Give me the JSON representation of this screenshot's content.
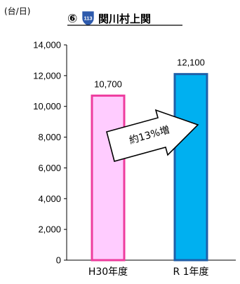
{
  "chart_data": {
    "type": "bar",
    "title_number": "⑥",
    "route_badge": "113",
    "title": "関川村上関",
    "unit_label": "(台/日)",
    "categories": [
      "H30年度",
      "R 1年度"
    ],
    "values": [
      10700,
      12100
    ],
    "value_labels": [
      "10,700",
      "12,100"
    ],
    "ylim": [
      0,
      14000
    ],
    "ytick_step": 2000,
    "ytick_labels": [
      "0",
      "2,000",
      "4,000",
      "6,000",
      "8,000",
      "10,000",
      "12,000",
      "14,000"
    ],
    "grid": false,
    "annotation": "約13%増",
    "bar_fill_colors": [
      "#FFCCFF",
      "#00B0F0"
    ],
    "bar_edge_colors": [
      "#EE3C9E",
      "#1F5FA8"
    ],
    "badge_color": "#2E5AAC"
  }
}
